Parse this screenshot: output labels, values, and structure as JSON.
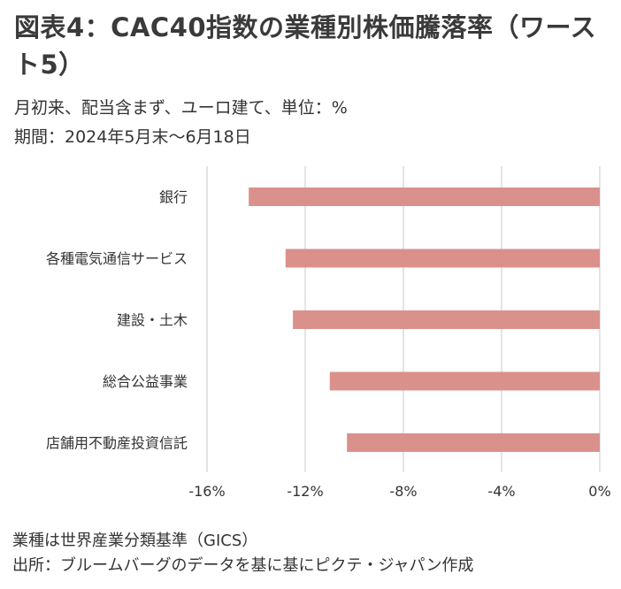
{
  "title": "図表4：CAC40指数の業種別株価騰落率（ワースト5）",
  "subtitle": "月初来、配当含まず、ユーロ建て、単位：%",
  "period": "期間：2024年5月末～6月18日",
  "notes": [
    "業種は世界産業分類基準（GICS）",
    "出所：ブルームバーグのデータを基に基にピクテ・ジャパン作成"
  ],
  "chart_data": {
    "type": "bar",
    "orientation": "horizontal",
    "categories": [
      "銀行",
      "各種電気通信サービス",
      "建設・土木",
      "総合公益事業",
      "店舗用不動産投資信託"
    ],
    "values": [
      -14.3,
      -12.8,
      -12.5,
      -11.0,
      -10.3
    ],
    "xlim": [
      -16,
      0
    ],
    "xticks": [
      -16,
      -12,
      -8,
      -4,
      0
    ],
    "tick_format": "%",
    "bar_color": "#da918c",
    "grid": "vertical",
    "legend": "none"
  }
}
